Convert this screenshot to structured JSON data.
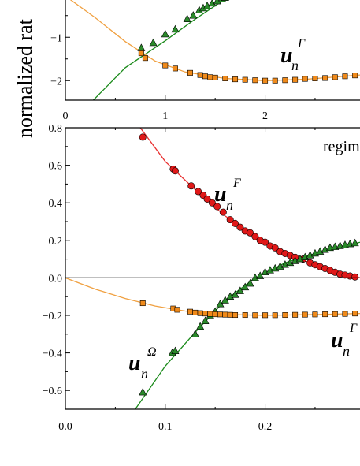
{
  "shared_ylabel": "normalized rat",
  "chart_data": [
    {
      "type": "scatter",
      "xlim": [
        0,
        2.95
      ],
      "ylim": [
        -2.45,
        -0.05
      ],
      "x_ticks": [
        0,
        1,
        2
      ],
      "x_tick_labels": [
        "0",
        "1",
        "2"
      ],
      "y_ticks": [
        -1,
        -2
      ],
      "y_tick_labels": [
        "−1",
        "−2"
      ],
      "annotations": [
        {
          "id": "gamma",
          "main": "u",
          "sub": "n",
          "sup": "Γ"
        }
      ],
      "series": [
        {
          "marker": "triangle",
          "color": "#2a8a2a",
          "points": [
            [
              0.76,
              -1.25
            ],
            [
              0.88,
              -1.13
            ],
            [
              1.0,
              -0.93
            ],
            [
              1.1,
              -0.82
            ],
            [
              1.22,
              -0.58
            ],
            [
              1.28,
              -0.5
            ],
            [
              1.34,
              -0.38
            ],
            [
              1.38,
              -0.33
            ],
            [
              1.42,
              -0.28
            ],
            [
              1.47,
              -0.22
            ],
            [
              1.52,
              -0.17
            ],
            [
              1.57,
              -0.12
            ],
            [
              1.6,
              -0.09
            ]
          ],
          "fit_line": {
            "color": "#1a8a1a",
            "points": [
              [
                0.28,
                -2.45
              ],
              [
                0.6,
                -1.7
              ],
              [
                1.0,
                -1.08
              ],
              [
                1.3,
                -0.58
              ],
              [
                1.6,
                -0.12
              ],
              [
                1.7,
                -0.02
              ]
            ]
          }
        },
        {
          "marker": "square",
          "color": "#f08a1a",
          "points": [
            [
              0.76,
              -1.37
            ],
            [
              0.8,
              -1.48
            ],
            [
              1.0,
              -1.65
            ],
            [
              1.1,
              -1.72
            ],
            [
              1.25,
              -1.82
            ],
            [
              1.35,
              -1.87
            ],
            [
              1.4,
              -1.9
            ],
            [
              1.45,
              -1.92
            ],
            [
              1.5,
              -1.93
            ],
            [
              1.6,
              -1.95
            ],
            [
              1.7,
              -1.97
            ],
            [
              1.8,
              -1.98
            ],
            [
              1.9,
              -1.99
            ],
            [
              2.0,
              -2.0
            ],
            [
              2.1,
              -2.0
            ],
            [
              2.2,
              -1.99
            ],
            [
              2.3,
              -1.98
            ],
            [
              2.4,
              -1.96
            ],
            [
              2.5,
              -1.95
            ],
            [
              2.6,
              -1.94
            ],
            [
              2.7,
              -1.92
            ],
            [
              2.8,
              -1.9
            ],
            [
              2.9,
              -1.88
            ]
          ],
          "fit_line": {
            "color": "#f0a040",
            "points": [
              [
                0.0,
                -0.05
              ],
              [
                0.3,
                -0.55
              ],
              [
                0.6,
                -1.1
              ],
              [
                0.9,
                -1.55
              ],
              [
                1.2,
                -1.8
              ],
              [
                1.6,
                -1.95
              ],
              [
                2.0,
                -2.0
              ],
              [
                2.4,
                -1.97
              ],
              [
                2.95,
                -1.87
              ]
            ]
          }
        }
      ]
    },
    {
      "type": "scatter",
      "xlim": [
        0,
        0.295
      ],
      "ylim": [
        -0.7,
        0.8
      ],
      "x_ticks": [
        0.0,
        0.1,
        0.2
      ],
      "x_tick_labels": [
        "0.0",
        "0.1",
        "0.2"
      ],
      "y_ticks": [
        0.8,
        0.6,
        0.4,
        0.2,
        0.0,
        -0.2,
        -0.4,
        -0.6
      ],
      "y_tick_labels": [
        "0.8",
        "0.6",
        "0.4",
        "0.2",
        "0.0",
        "−0.2",
        "−0.4",
        "−0.6"
      ],
      "zero_line": true,
      "regime_label": "regim",
      "annotations": [
        {
          "id": "F",
          "main": "u",
          "sub": "n",
          "sup": "F"
        },
        {
          "id": "gamma",
          "main": "u",
          "sub": "n",
          "sup": "Γ"
        },
        {
          "id": "omega",
          "main": "u",
          "sub": "n",
          "sup": "Ω"
        }
      ],
      "series": [
        {
          "marker": "circle",
          "color": "#e01818",
          "points": [
            [
              0.0775,
              0.75
            ],
            [
              0.108,
              0.58
            ],
            [
              0.11,
              0.57
            ],
            [
              0.126,
              0.49
            ],
            [
              0.133,
              0.46
            ],
            [
              0.138,
              0.44
            ],
            [
              0.142,
              0.42
            ],
            [
              0.147,
              0.4
            ],
            [
              0.152,
              0.38
            ],
            [
              0.158,
              0.35
            ],
            [
              0.165,
              0.31
            ],
            [
              0.17,
              0.29
            ],
            [
              0.175,
              0.27
            ],
            [
              0.18,
              0.25
            ],
            [
              0.185,
              0.24
            ],
            [
              0.19,
              0.22
            ],
            [
              0.195,
              0.2
            ],
            [
              0.2,
              0.19
            ],
            [
              0.205,
              0.17
            ],
            [
              0.21,
              0.16
            ],
            [
              0.215,
              0.14
            ],
            [
              0.22,
              0.13
            ],
            [
              0.225,
              0.12
            ],
            [
              0.23,
              0.11
            ],
            [
              0.238,
              0.1
            ],
            [
              0.245,
              0.08
            ],
            [
              0.25,
              0.07
            ],
            [
              0.255,
              0.06
            ],
            [
              0.26,
              0.05
            ],
            [
              0.265,
              0.04
            ],
            [
              0.27,
              0.03
            ],
            [
              0.275,
              0.02
            ],
            [
              0.28,
              0.015
            ],
            [
              0.285,
              0.01
            ],
            [
              0.29,
              0.005
            ]
          ],
          "fit_line": {
            "color": "#e83030",
            "points": [
              [
                0.075,
                0.8
              ],
              [
                0.1,
                0.62
              ],
              [
                0.13,
                0.47
              ],
              [
                0.16,
                0.33
              ],
              [
                0.2,
                0.19
              ],
              [
                0.24,
                0.09
              ],
              [
                0.295,
                0.0
              ]
            ]
          }
        },
        {
          "marker": "triangle",
          "color": "#2a8a2a",
          "points": [
            [
              0.0775,
              -0.61
            ],
            [
              0.107,
              -0.4
            ],
            [
              0.11,
              -0.39
            ],
            [
              0.13,
              -0.3
            ],
            [
              0.135,
              -0.26
            ],
            [
              0.14,
              -0.23
            ],
            [
              0.145,
              -0.2
            ],
            [
              0.15,
              -0.18
            ],
            [
              0.155,
              -0.14
            ],
            [
              0.16,
              -0.12
            ],
            [
              0.165,
              -0.1
            ],
            [
              0.17,
              -0.09
            ],
            [
              0.175,
              -0.07
            ],
            [
              0.18,
              -0.05
            ],
            [
              0.185,
              -0.03
            ],
            [
              0.19,
              0.0
            ],
            [
              0.195,
              0.01
            ],
            [
              0.2,
              0.03
            ],
            [
              0.205,
              0.04
            ],
            [
              0.21,
              0.05
            ],
            [
              0.215,
              0.06
            ],
            [
              0.22,
              0.07
            ],
            [
              0.225,
              0.08
            ],
            [
              0.23,
              0.09
            ],
            [
              0.235,
              0.1
            ],
            [
              0.24,
              0.11
            ],
            [
              0.245,
              0.12
            ],
            [
              0.25,
              0.13
            ],
            [
              0.255,
              0.14
            ],
            [
              0.26,
              0.15
            ],
            [
              0.265,
              0.16
            ],
            [
              0.27,
              0.165
            ],
            [
              0.275,
              0.17
            ],
            [
              0.28,
              0.175
            ],
            [
              0.285,
              0.18
            ],
            [
              0.29,
              0.185
            ]
          ],
          "fit_line": {
            "color": "#1a8a1a",
            "points": [
              [
                0.07,
                -0.7
              ],
              [
                0.1,
                -0.47
              ],
              [
                0.13,
                -0.29
              ],
              [
                0.16,
                -0.12
              ],
              [
                0.19,
                0.0
              ],
              [
                0.22,
                0.08
              ],
              [
                0.25,
                0.13
              ],
              [
                0.295,
                0.19
              ]
            ]
          }
        },
        {
          "marker": "square",
          "color": "#f08a1a",
          "points": [
            [
              0.0775,
              -0.135
            ],
            [
              0.108,
              -0.163
            ],
            [
              0.112,
              -0.17
            ],
            [
              0.125,
              -0.18
            ],
            [
              0.13,
              -0.185
            ],
            [
              0.135,
              -0.188
            ],
            [
              0.14,
              -0.19
            ],
            [
              0.145,
              -0.192
            ],
            [
              0.15,
              -0.194
            ],
            [
              0.155,
              -0.195
            ],
            [
              0.16,
              -0.196
            ],
            [
              0.165,
              -0.197
            ],
            [
              0.17,
              -0.198
            ],
            [
              0.18,
              -0.198
            ],
            [
              0.19,
              -0.199
            ],
            [
              0.2,
              -0.199
            ],
            [
              0.21,
              -0.199
            ],
            [
              0.22,
              -0.198
            ],
            [
              0.23,
              -0.197
            ],
            [
              0.24,
              -0.196
            ],
            [
              0.25,
              -0.195
            ],
            [
              0.26,
              -0.194
            ],
            [
              0.27,
              -0.193
            ],
            [
              0.28,
              -0.192
            ],
            [
              0.29,
              -0.19
            ]
          ],
          "fit_line": {
            "color": "#f0a040",
            "points": [
              [
                0.0,
                0.0
              ],
              [
                0.03,
                -0.06
              ],
              [
                0.06,
                -0.11
              ],
              [
                0.09,
                -0.15
              ],
              [
                0.12,
                -0.177
              ],
              [
                0.16,
                -0.195
              ],
              [
                0.2,
                -0.2
              ],
              [
                0.25,
                -0.196
              ],
              [
                0.295,
                -0.19
              ]
            ]
          }
        }
      ]
    }
  ]
}
